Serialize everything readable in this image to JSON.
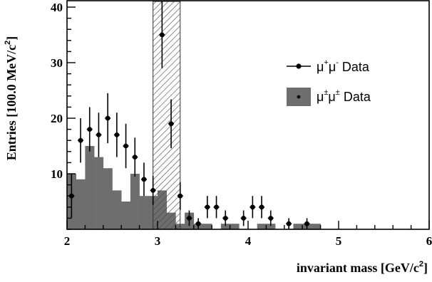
{
  "chart_data": {
    "type": "bar",
    "xlabel": "invariant mass [GeV/c",
    "xlabel_sup": "2",
    "xlabel_end": "]",
    "ylabel": "Entries [100.0 MeV/c",
    "ylabel_sup": "2",
    "ylabel_end": "]",
    "xlim": [
      2,
      6
    ],
    "ylim": [
      0,
      42
    ],
    "x_ticks": [
      2,
      3,
      4,
      5,
      6
    ],
    "y_ticks": [
      10,
      20,
      30,
      40
    ],
    "excluded_band": [
      2.95,
      3.25
    ],
    "bin_width": 0.1,
    "hist_color": "#6e6e6e",
    "legend": {
      "position": "right",
      "entries": [
        {
          "base": "μ",
          "sup1": "+",
          "mid": "μ",
          "sup2": "-",
          "tail": " Data",
          "style": "points"
        },
        {
          "base": "μ",
          "sup1": "±",
          "mid": "μ",
          "sup2": "±",
          "tail": " Data",
          "style": "filled"
        }
      ]
    },
    "series": [
      {
        "name": "μ+μ- Data",
        "style": "points",
        "points": [
          {
            "x": 2.05,
            "y": 6,
            "err": 4
          },
          {
            "x": 2.15,
            "y": 16,
            "err": 4
          },
          {
            "x": 2.25,
            "y": 18,
            "err": 4
          },
          {
            "x": 2.35,
            "y": 17,
            "err": 4
          },
          {
            "x": 2.45,
            "y": 20,
            "err": 4.5
          },
          {
            "x": 2.55,
            "y": 17,
            "err": 4
          },
          {
            "x": 2.65,
            "y": 15,
            "err": 4
          },
          {
            "x": 2.75,
            "y": 13,
            "err": 3.5
          },
          {
            "x": 2.85,
            "y": 9,
            "err": 3
          },
          {
            "x": 2.95,
            "y": 7,
            "err": 2.6
          },
          {
            "x": 3.05,
            "y": 35,
            "err": 6
          },
          {
            "x": 3.15,
            "y": 19,
            "err": 4.4
          },
          {
            "x": 3.25,
            "y": 6,
            "err": 2.5
          },
          {
            "x": 3.35,
            "y": 2,
            "err": 1.4
          },
          {
            "x": 3.45,
            "y": 1,
            "err": 1
          },
          {
            "x": 3.55,
            "y": 4,
            "err": 2
          },
          {
            "x": 3.65,
            "y": 4,
            "err": 2
          },
          {
            "x": 3.75,
            "y": 2,
            "err": 1.4
          },
          {
            "x": 3.95,
            "y": 2,
            "err": 1.4
          },
          {
            "x": 4.05,
            "y": 4,
            "err": 2
          },
          {
            "x": 4.15,
            "y": 4,
            "err": 2
          },
          {
            "x": 4.25,
            "y": 2,
            "err": 1.4
          },
          {
            "x": 4.45,
            "y": 1,
            "err": 1
          },
          {
            "x": 4.65,
            "y": 1,
            "err": 1
          }
        ]
      },
      {
        "name": "μ±μ± Data",
        "style": "filled",
        "bins": [
          {
            "x": 2.0,
            "y": 10
          },
          {
            "x": 2.1,
            "y": 9
          },
          {
            "x": 2.2,
            "y": 15
          },
          {
            "x": 2.3,
            "y": 13
          },
          {
            "x": 2.4,
            "y": 11
          },
          {
            "x": 2.5,
            "y": 7
          },
          {
            "x": 2.6,
            "y": 5
          },
          {
            "x": 2.7,
            "y": 10
          },
          {
            "x": 2.8,
            "y": 6
          },
          {
            "x": 2.9,
            "y": 6
          },
          {
            "x": 3.0,
            "y": 7
          },
          {
            "x": 3.1,
            "y": 3
          },
          {
            "x": 3.2,
            "y": 1
          },
          {
            "x": 3.3,
            "y": 3
          },
          {
            "x": 3.4,
            "y": 1
          },
          {
            "x": 3.5,
            "y": 1
          },
          {
            "x": 3.6,
            "y": 0
          },
          {
            "x": 3.7,
            "y": 1
          },
          {
            "x": 3.8,
            "y": 1
          },
          {
            "x": 3.9,
            "y": 0
          },
          {
            "x": 4.0,
            "y": 0
          },
          {
            "x": 4.1,
            "y": 1
          },
          {
            "x": 4.2,
            "y": 1
          },
          {
            "x": 4.3,
            "y": 0
          },
          {
            "x": 4.4,
            "y": 0
          },
          {
            "x": 4.5,
            "y": 1
          },
          {
            "x": 4.6,
            "y": 1
          },
          {
            "x": 4.7,
            "y": 1
          }
        ]
      }
    ]
  }
}
